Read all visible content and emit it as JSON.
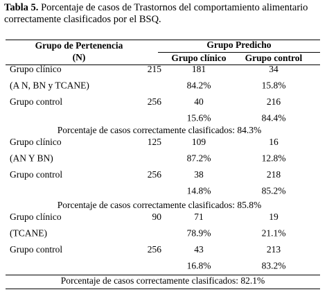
{
  "caption": {
    "label": "Tabla 5.",
    "text": "Porcentaje  de  casos de Trastornos del comportamiento alimentario correctamente clasificados por el BSQ."
  },
  "table": {
    "header": {
      "group": "Grupo de Pertenencia",
      "n": "(N)",
      "predicted": "Grupo Predicho",
      "clinico": "Grupo clínico",
      "control": "Grupo control"
    },
    "blocks": [
      {
        "rows": [
          {
            "label": "Grupo clínico",
            "n": 215,
            "clinico": 181,
            "control": 34
          },
          {
            "label": "(A N, BN y TCANE)",
            "clinico": "84.2%",
            "control": "15.8%"
          },
          {
            "label": "Grupo control",
            "n": 256,
            "clinico": 40,
            "control": 216
          },
          {
            "clinico": "15.6%",
            "control": "84.4%"
          }
        ],
        "summary": "Porcentaje de casos correctamente clasificados: 84.3%"
      },
      {
        "rows": [
          {
            "label": "Grupo clínico",
            "n": 125,
            "clinico": 109,
            "control": 16
          },
          {
            "label": "(AN Y BN)",
            "clinico": "87.2%",
            "control": "12.8%"
          },
          {
            "label": "Grupo control",
            "n": 256,
            "clinico": 38,
            "control": 218
          },
          {
            "clinico": "14.8%",
            "control": "85.2%"
          }
        ],
        "summary": "Porcentaje de casos correctamente clasificados: 85.8%"
      },
      {
        "rows": [
          {
            "label": "Grupo clínico",
            "n": 90,
            "clinico": 71,
            "control": 19
          },
          {
            "label": "(TCANE)",
            "clinico": "78.9%",
            "control": "21.1%"
          },
          {
            "label": "Grupo control",
            "n": 256,
            "clinico": 43,
            "control": 213
          },
          {
            "clinico": "16.8%",
            "control": "83.2%"
          }
        ],
        "summary": "Porcentaje de casos correctamente clasificados: 82.1%"
      }
    ]
  }
}
